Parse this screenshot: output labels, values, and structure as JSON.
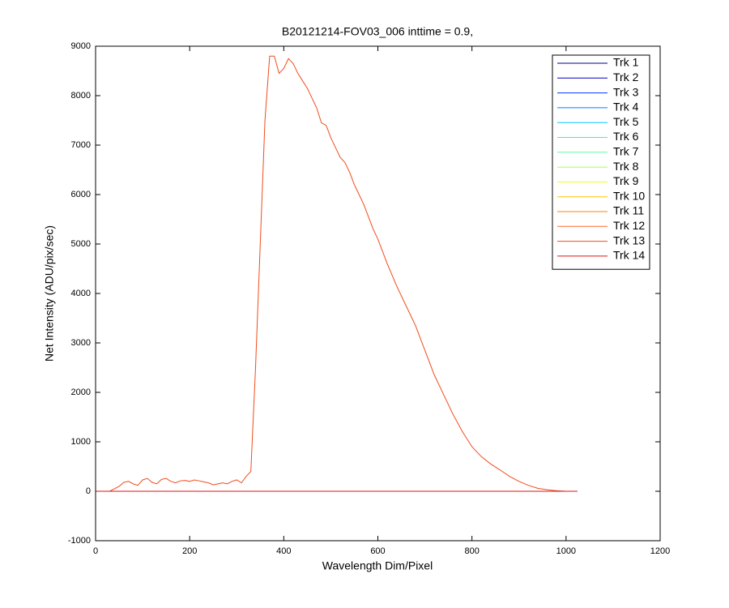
{
  "chart_data": {
    "type": "line",
    "title": "B20121214-FOV03_006 inttime = 0.9,",
    "x_label": "Wavelength Dim/Pixel",
    "y_label": "Net Intensity (ADU/pix/sec)",
    "xlim": [
      0,
      1200
    ],
    "ylim": [
      -1000,
      9000
    ],
    "xticks": [
      0,
      200,
      400,
      600,
      800,
      1000,
      1200
    ],
    "yticks": [
      -1000,
      0,
      1000,
      2000,
      3000,
      4000,
      5000,
      6000,
      7000,
      8000,
      9000
    ],
    "legend": "upper right",
    "series": [
      {
        "name": "Trk 1",
        "color": "#00007f",
        "x": [
          0,
          1024
        ],
        "values": [
          0,
          0
        ]
      },
      {
        "name": "Trk 2",
        "color": "#0000c8",
        "x": [
          0,
          1024
        ],
        "values": [
          0,
          0
        ]
      },
      {
        "name": "Trk 3",
        "color": "#0037ff",
        "x": [
          0,
          1024
        ],
        "values": [
          0,
          0
        ]
      },
      {
        "name": "Trk 4",
        "color": "#0080ff",
        "x": [
          0,
          1024
        ],
        "values": [
          0,
          0
        ]
      },
      {
        "name": "Trk 5",
        "color": "#00c8ff",
        "x": [
          0,
          1024
        ],
        "values": [
          0,
          0
        ]
      },
      {
        "name": "Trk 6",
        "color": "#12ffed",
        "x": [
          0,
          1024
        ],
        "values": [
          0,
          0
        ]
      },
      {
        "name": "Trk 7",
        "color": "#5bffa4",
        "x": [
          0,
          1024
        ],
        "values": [
          0,
          0
        ]
      },
      {
        "name": "Trk 8",
        "color": "#a4ff5b",
        "x": [
          0,
          1024
        ],
        "values": [
          0,
          0
        ]
      },
      {
        "name": "Trk 9",
        "color": "#edff12",
        "x": [
          0,
          1024
        ],
        "values": [
          0,
          0
        ]
      },
      {
        "name": "Trk 10",
        "color": "#ffc800",
        "x": [
          0,
          1024
        ],
        "values": [
          0,
          0
        ]
      },
      {
        "name": "Trk 11",
        "color": "#ff8000",
        "x": [
          0,
          1024
        ],
        "values": [
          0,
          0
        ]
      },
      {
        "name": "Trk 12",
        "color": "#ff6a20",
        "x": [
          0,
          1024
        ],
        "values": [
          0,
          0
        ]
      },
      {
        "name": "Trk 13",
        "color": "#f04c1c",
        "x": [
          0,
          30,
          50,
          60,
          70,
          80,
          90,
          100,
          110,
          120,
          130,
          140,
          150,
          160,
          170,
          180,
          190,
          200,
          210,
          220,
          230,
          240,
          250,
          260,
          270,
          280,
          290,
          300,
          310,
          320,
          330,
          340,
          350,
          360,
          370,
          380,
          390,
          400,
          410,
          420,
          430,
          440,
          450,
          460,
          470,
          480,
          490,
          500,
          510,
          520,
          530,
          540,
          550,
          560,
          570,
          580,
          590,
          600,
          620,
          640,
          660,
          680,
          700,
          720,
          740,
          760,
          780,
          800,
          820,
          840,
          860,
          880,
          900,
          920,
          940,
          960,
          980,
          1000,
          1024
        ],
        "values": [
          0,
          0,
          100,
          180,
          200,
          150,
          120,
          230,
          260,
          180,
          150,
          240,
          260,
          200,
          170,
          210,
          220,
          200,
          230,
          210,
          190,
          170,
          130,
          150,
          170,
          150,
          200,
          230,
          170,
          300,
          400,
          2500,
          5000,
          7500,
          8800,
          8800,
          8450,
          8550,
          8750,
          8650,
          8450,
          8300,
          8150,
          7950,
          7750,
          7450,
          7400,
          7150,
          6950,
          6750,
          6650,
          6450,
          6200,
          6000,
          5800,
          5550,
          5300,
          5100,
          4600,
          4150,
          3750,
          3350,
          2850,
          2350,
          1950,
          1550,
          1200,
          900,
          700,
          550,
          430,
          300,
          200,
          120,
          60,
          30,
          10,
          0,
          0
        ]
      },
      {
        "name": "Trk 14",
        "color": "#e01010",
        "x": [
          0,
          1024
        ],
        "values": [
          0,
          0
        ]
      }
    ]
  }
}
